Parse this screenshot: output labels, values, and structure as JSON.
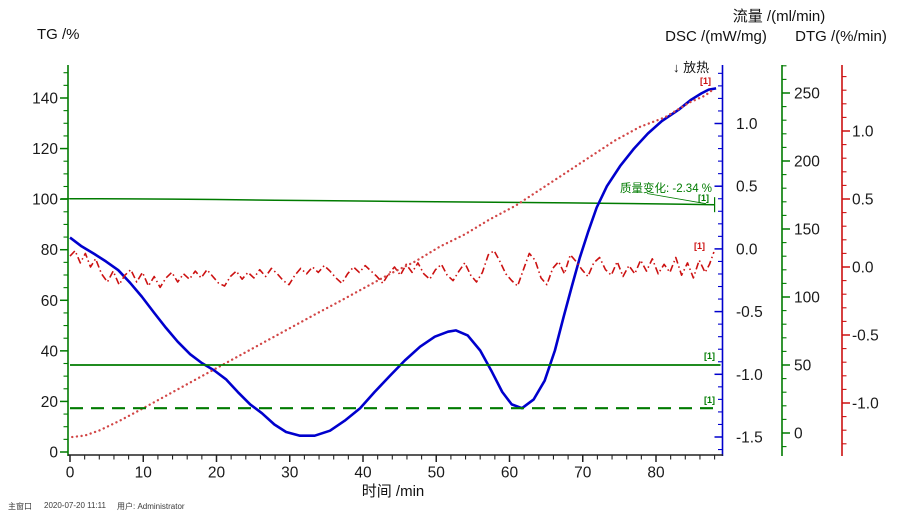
{
  "annotations": {
    "mass_change": "质量变化: -2.34 %",
    "curve_tag": "[1]",
    "exo": "↓ 放热"
  },
  "status_bar": {
    "window": "主窗口",
    "datetime": "2020-07-20 11:11",
    "user": "用户: Administrator"
  },
  "chart_data": {
    "type": "line",
    "title": "",
    "x_axis": {
      "title": "时间 /min",
      "ticks": [
        0,
        10,
        20,
        30,
        40,
        50,
        60,
        70,
        80
      ],
      "range": [
        0,
        89
      ],
      "minor_tick_every": 2
    },
    "y_axes": {
      "tg": {
        "title": "TG /%",
        "ticks": [
          140,
          120,
          100,
          80,
          60,
          40,
          20,
          0
        ],
        "range": [
          0,
          153
        ]
      },
      "dsc": {
        "title": "DSC /(mW/mg)",
        "ticks": [
          1.0,
          0.5,
          0.0,
          -0.5,
          -1.0,
          -1.5
        ],
        "range": [
          -1.65,
          1.47
        ]
      },
      "flow": {
        "title": "流量 /(ml/min)",
        "ticks": [
          250,
          200,
          150,
          100,
          50,
          0
        ],
        "range": [
          -17,
          271
        ]
      },
      "dtg": {
        "title": "DTG /(%/min)",
        "ticks": [
          1.0,
          0.5,
          0.0,
          -0.5,
          -1.0
        ],
        "range": [
          -1.4,
          1.49
        ]
      }
    },
    "mass_change_percent": -2.34,
    "series": [
      {
        "name": "TG",
        "axis": "tg",
        "color": "#007b00",
        "style": "solid",
        "points": [
          [
            0,
            100.15
          ],
          [
            4,
            100.15
          ],
          [
            8,
            100.1
          ],
          [
            14,
            100.0
          ],
          [
            20,
            99.85
          ],
          [
            28,
            99.6
          ],
          [
            36,
            99.35
          ],
          [
            44,
            99.1
          ],
          [
            52,
            98.9
          ],
          [
            60,
            98.72
          ],
          [
            68,
            98.5
          ],
          [
            74,
            98.3
          ],
          [
            80,
            98.1
          ],
          [
            84,
            97.95
          ],
          [
            88,
            97.81
          ]
        ]
      },
      {
        "name": "DSC",
        "axis": "dsc",
        "color": "#0000cd",
        "style": "solid",
        "points": [
          [
            0,
            0.09
          ],
          [
            1.6,
            0.02
          ],
          [
            3.3,
            -0.04
          ],
          [
            4.9,
            -0.1
          ],
          [
            6.6,
            -0.17
          ],
          [
            8.2,
            -0.27
          ],
          [
            9.8,
            -0.38
          ],
          [
            11.5,
            -0.51
          ],
          [
            13.1,
            -0.63
          ],
          [
            14.7,
            -0.74
          ],
          [
            16.4,
            -0.84
          ],
          [
            18,
            -0.91
          ],
          [
            19.7,
            -0.97
          ],
          [
            21.3,
            -1.04
          ],
          [
            22.9,
            -1.14
          ],
          [
            24.6,
            -1.24
          ],
          [
            26.2,
            -1.31
          ],
          [
            27.9,
            -1.4
          ],
          [
            29.5,
            -1.46
          ],
          [
            31.4,
            -1.49
          ],
          [
            33.4,
            -1.49
          ],
          [
            35.5,
            -1.45
          ],
          [
            37.5,
            -1.37
          ],
          [
            39.6,
            -1.27
          ],
          [
            41.6,
            -1.14
          ],
          [
            43.7,
            -1.01
          ],
          [
            45.7,
            -0.89
          ],
          [
            47.8,
            -0.78
          ],
          [
            49.8,
            -0.7
          ],
          [
            51.6,
            -0.66
          ],
          [
            52.7,
            -0.65
          ],
          [
            54.3,
            -0.69
          ],
          [
            56,
            -0.81
          ],
          [
            57.6,
            -0.98
          ],
          [
            59,
            -1.14
          ],
          [
            60.3,
            -1.24
          ],
          [
            61.7,
            -1.27
          ],
          [
            63.3,
            -1.2
          ],
          [
            64.8,
            -1.05
          ],
          [
            66.2,
            -0.81
          ],
          [
            67.4,
            -0.54
          ],
          [
            68.5,
            -0.3
          ],
          [
            69.6,
            -0.07
          ],
          [
            70.7,
            0.13
          ],
          [
            71.9,
            0.33
          ],
          [
            73.3,
            0.5
          ],
          [
            75.1,
            0.66
          ],
          [
            77,
            0.8
          ],
          [
            78.9,
            0.92
          ],
          [
            80.8,
            1.02
          ],
          [
            83.1,
            1.11
          ],
          [
            84.8,
            1.19
          ],
          [
            86.2,
            1.24
          ],
          [
            87.2,
            1.27
          ],
          [
            88.2,
            1.28
          ]
        ]
      },
      {
        "name": "DTG",
        "axis": "dtg",
        "color": "#cc1111",
        "style": "dashdot",
        "points": [
          [
            0,
            0.08
          ],
          [
            0.7,
            0.12
          ],
          [
            1.4,
            0.03
          ],
          [
            2.1,
            0.1
          ],
          [
            2.8,
            0.0
          ],
          [
            3.5,
            0.06
          ],
          [
            4.3,
            -0.05
          ],
          [
            5.1,
            -0.11
          ],
          [
            5.9,
            -0.03
          ],
          [
            6.7,
            -0.13
          ],
          [
            7.5,
            -0.06
          ],
          [
            8.3,
            -0.02
          ],
          [
            9.1,
            -0.11
          ],
          [
            9.9,
            -0.04
          ],
          [
            10.7,
            -0.14
          ],
          [
            11.5,
            -0.07
          ],
          [
            12.3,
            -0.15
          ],
          [
            13.1,
            -0.08
          ],
          [
            13.9,
            -0.04
          ],
          [
            14.7,
            -0.11
          ],
          [
            15.5,
            -0.05
          ],
          [
            16.3,
            -0.09
          ],
          [
            17.1,
            -0.03
          ],
          [
            17.9,
            -0.08
          ],
          [
            18.7,
            -0.02
          ],
          [
            19.5,
            -0.07
          ],
          [
            20.3,
            -0.12
          ],
          [
            21.1,
            -0.14
          ],
          [
            21.9,
            -0.07
          ],
          [
            22.7,
            -0.03
          ],
          [
            23.5,
            -0.09
          ],
          [
            24.3,
            -0.04
          ],
          [
            25.1,
            -0.08
          ],
          [
            25.9,
            -0.02
          ],
          [
            26.7,
            -0.07
          ],
          [
            27.5,
            -0.01
          ],
          [
            28.3,
            -0.05
          ],
          [
            29.1,
            -0.1
          ],
          [
            29.9,
            -0.13
          ],
          [
            30.7,
            -0.06
          ],
          [
            31.5,
            -0.01
          ],
          [
            32.3,
            -0.05
          ],
          [
            33.1,
            0.0
          ],
          [
            33.9,
            -0.04
          ],
          [
            34.7,
            0.01
          ],
          [
            35.5,
            -0.03
          ],
          [
            36.3,
            -0.08
          ],
          [
            37.1,
            -0.12
          ],
          [
            37.9,
            -0.05
          ],
          [
            38.7,
            0.0
          ],
          [
            39.5,
            -0.04
          ],
          [
            40.3,
            0.01
          ],
          [
            41.1,
            -0.03
          ],
          [
            41.9,
            -0.07
          ],
          [
            42.7,
            -0.12
          ],
          [
            43.5,
            -0.05
          ],
          [
            44.3,
            0.0
          ],
          [
            45.1,
            -0.06
          ],
          [
            45.9,
            0.02
          ],
          [
            46.7,
            -0.04
          ],
          [
            47.5,
            0.03
          ],
          [
            48.3,
            -0.05
          ],
          [
            49.1,
            -0.09
          ],
          [
            49.9,
            -0.02
          ],
          [
            50.7,
            0.02
          ],
          [
            51.5,
            -0.06
          ],
          [
            52.3,
            -0.1
          ],
          [
            53.1,
            -0.03
          ],
          [
            53.9,
            0.03
          ],
          [
            54.7,
            -0.06
          ],
          [
            55.5,
            -0.11
          ],
          [
            56.3,
            -0.04
          ],
          [
            57.1,
            0.09
          ],
          [
            57.9,
            0.12
          ],
          [
            58.7,
            0.04
          ],
          [
            59.5,
            -0.05
          ],
          [
            60.3,
            -0.1
          ],
          [
            61.1,
            -0.14
          ],
          [
            61.9,
            -0.02
          ],
          [
            62.7,
            0.1
          ],
          [
            63.5,
            0.05
          ],
          [
            64.3,
            -0.08
          ],
          [
            65.1,
            -0.13
          ],
          [
            65.9,
            -0.01
          ],
          [
            66.7,
            0.04
          ],
          [
            67.5,
            -0.05
          ],
          [
            68.3,
            0.09
          ],
          [
            69.1,
            0.04
          ],
          [
            69.9,
            -0.02
          ],
          [
            70.7,
            -0.07
          ],
          [
            71.5,
            0.03
          ],
          [
            72.3,
            0.07
          ],
          [
            73.1,
            -0.02
          ],
          [
            73.9,
            -0.06
          ],
          [
            74.7,
            0.04
          ],
          [
            75.5,
            -0.07
          ],
          [
            76.3,
            0.01
          ],
          [
            77.1,
            -0.05
          ],
          [
            77.9,
            0.05
          ],
          [
            78.7,
            -0.03
          ],
          [
            79.5,
            0.06
          ],
          [
            80.3,
            -0.05
          ],
          [
            81.1,
            0.02
          ],
          [
            81.9,
            -0.04
          ],
          [
            82.7,
            0.07
          ],
          [
            83.5,
            -0.06
          ],
          [
            84.3,
            0.03
          ],
          [
            85.1,
            -0.08
          ],
          [
            85.9,
            0.05
          ],
          [
            86.7,
            -0.04
          ],
          [
            87.3,
            0.02
          ],
          [
            87.9,
            0.11
          ]
        ]
      },
      {
        "name": "temperature-ramp",
        "axis": "dtg",
        "color": "#d24646",
        "style": "dotted",
        "points": [
          [
            0.3,
            -1.25
          ],
          [
            2,
            -1.24
          ],
          [
            4.1,
            -1.2
          ],
          [
            6.8,
            -1.13
          ],
          [
            9.6,
            -1.05
          ],
          [
            13,
            -0.95
          ],
          [
            16.4,
            -0.85
          ],
          [
            19.8,
            -0.75
          ],
          [
            23.2,
            -0.65
          ],
          [
            26.6,
            -0.55
          ],
          [
            30,
            -0.45
          ],
          [
            33.4,
            -0.35
          ],
          [
            36.9,
            -0.25
          ],
          [
            40.3,
            -0.15
          ],
          [
            43.7,
            -0.05
          ],
          [
            47.1,
            0.04
          ],
          [
            50.5,
            0.15
          ],
          [
            53.9,
            0.24
          ],
          [
            57.3,
            0.35
          ],
          [
            60.8,
            0.45
          ],
          [
            64.2,
            0.57
          ],
          [
            67.6,
            0.69
          ],
          [
            71,
            0.81
          ],
          [
            74.4,
            0.93
          ],
          [
            77.8,
            1.03
          ],
          [
            81.2,
            1.1
          ],
          [
            84.6,
            1.21
          ],
          [
            86.7,
            1.26
          ],
          [
            87.9,
            1.31
          ]
        ]
      },
      {
        "name": "purge-flow",
        "axis": "flow",
        "color": "#007b00",
        "style": "solid",
        "points": [
          [
            0,
            50
          ],
          [
            88.8,
            50
          ]
        ]
      },
      {
        "name": "protective-flow",
        "axis": "flow",
        "color": "#007b00",
        "style": "dashed",
        "points": [
          [
            0,
            18.2
          ],
          [
            88.8,
            18.2
          ]
        ]
      }
    ]
  }
}
